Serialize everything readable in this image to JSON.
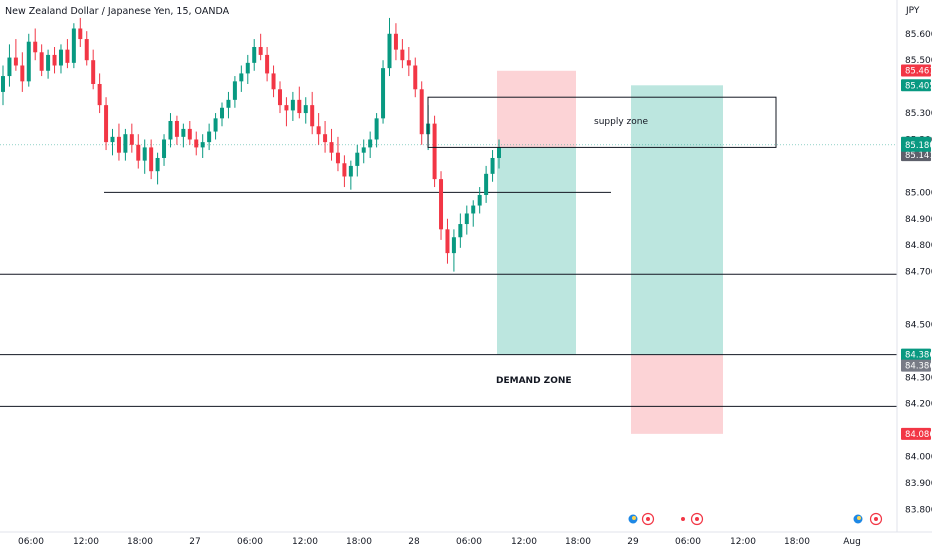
{
  "header": {
    "title": "New Zealand Dollar / Japanese Yen, 15, OANDA",
    "currency": "JPY"
  },
  "chart_data": {
    "type": "candlestick",
    "ylim": [
      83.76,
      85.69
    ],
    "y_ticks": [
      "85.600",
      "85.500",
      "85.300",
      "85.200",
      "85.000",
      "84.900",
      "84.800",
      "84.700",
      "84.500",
      "84.300",
      "84.200",
      "84.000",
      "83.900",
      "83.800"
    ],
    "x_ticks": [
      "06:00",
      "12:00",
      "18:00",
      "27",
      "06:00",
      "12:00",
      "18:00",
      "28",
      "06:00",
      "12:00",
      "18:00",
      "29",
      "06:00",
      "12:00",
      "18:00",
      "Aug"
    ],
    "price_badges": [
      {
        "label": "85.461",
        "value": 85.461,
        "color": "#f23645"
      },
      {
        "label": "85.405",
        "value": 85.405,
        "color": "#089981"
      },
      {
        "label": "85.141",
        "value": 85.141,
        "color": "#5d606b"
      },
      {
        "label": "84.386",
        "value": 84.386,
        "color": "#089981"
      },
      {
        "label": "84.386",
        "value": 84.386,
        "color": "#787b86"
      },
      {
        "label": "84.086",
        "value": 84.086,
        "color": "#f23645"
      }
    ],
    "current_price": {
      "value": 85.18,
      "label": "85.180",
      "color": "#089981"
    },
    "annotations": {
      "supply_zone": "supply zone",
      "demand_zone": "DEMAND ZONE"
    },
    "horizontal_levels": [
      85.0,
      84.69,
      84.386,
      84.19
    ],
    "supply_zone_range": [
      85.17,
      85.36
    ],
    "position_1": {
      "entry": 85.17,
      "stop": 85.46,
      "target": 84.386
    },
    "position_2": {
      "entry": 84.386,
      "stop": 84.086,
      "target": 85.405
    },
    "candles": [
      [
        85.38,
        85.48,
        85.33,
        85.44
      ],
      [
        85.44,
        85.56,
        85.4,
        85.51
      ],
      [
        85.51,
        85.58,
        85.46,
        85.48
      ],
      [
        85.48,
        85.53,
        85.38,
        85.42
      ],
      [
        85.42,
        85.6,
        85.4,
        85.57
      ],
      [
        85.57,
        85.62,
        85.5,
        85.53
      ],
      [
        85.53,
        85.56,
        85.44,
        85.46
      ],
      [
        85.46,
        85.54,
        85.43,
        85.52
      ],
      [
        85.52,
        85.55,
        85.45,
        85.48
      ],
      [
        85.48,
        85.56,
        85.45,
        85.54
      ],
      [
        85.54,
        85.58,
        85.47,
        85.49
      ],
      [
        85.49,
        85.64,
        85.47,
        85.62
      ],
      [
        85.62,
        85.66,
        85.55,
        85.58
      ],
      [
        85.58,
        85.61,
        85.48,
        85.5
      ],
      [
        85.5,
        85.54,
        85.39,
        85.41
      ],
      [
        85.41,
        85.45,
        85.3,
        85.33
      ],
      [
        85.33,
        85.36,
        85.16,
        85.19
      ],
      [
        85.19,
        85.24,
        85.14,
        85.21
      ],
      [
        85.21,
        85.26,
        85.12,
        85.15
      ],
      [
        85.15,
        85.24,
        85.12,
        85.22
      ],
      [
        85.22,
        85.26,
        85.15,
        85.18
      ],
      [
        85.18,
        85.22,
        85.09,
        85.12
      ],
      [
        85.12,
        85.2,
        85.07,
        85.17
      ],
      [
        85.17,
        85.2,
        85.05,
        85.08
      ],
      [
        85.08,
        85.15,
        85.03,
        85.13
      ],
      [
        85.13,
        85.22,
        85.1,
        85.2
      ],
      [
        85.2,
        85.3,
        85.17,
        85.27
      ],
      [
        85.27,
        85.29,
        85.18,
        85.21
      ],
      [
        85.21,
        85.26,
        85.17,
        85.24
      ],
      [
        85.24,
        85.27,
        85.18,
        85.2
      ],
      [
        85.2,
        85.23,
        85.14,
        85.17
      ],
      [
        85.17,
        85.22,
        85.13,
        85.19
      ],
      [
        85.19,
        85.26,
        85.16,
        85.23
      ],
      [
        85.23,
        85.3,
        85.2,
        85.28
      ],
      [
        85.28,
        85.34,
        85.25,
        85.32
      ],
      [
        85.32,
        85.38,
        85.28,
        85.35
      ],
      [
        85.35,
        85.44,
        85.32,
        85.42
      ],
      [
        85.42,
        85.48,
        85.38,
        85.45
      ],
      [
        85.45,
        85.52,
        85.41,
        85.49
      ],
      [
        85.49,
        85.58,
        85.46,
        85.55
      ],
      [
        85.55,
        85.6,
        85.5,
        85.52
      ],
      [
        85.52,
        85.55,
        85.42,
        85.45
      ],
      [
        85.45,
        85.48,
        85.36,
        85.39
      ],
      [
        85.39,
        85.42,
        85.3,
        85.33
      ],
      [
        85.33,
        85.36,
        85.25,
        85.31
      ],
      [
        85.31,
        85.38,
        85.27,
        85.35
      ],
      [
        85.35,
        85.4,
        85.28,
        85.3
      ],
      [
        85.3,
        85.36,
        85.26,
        85.33
      ],
      [
        85.33,
        85.38,
        85.22,
        85.25
      ],
      [
        85.25,
        85.3,
        85.18,
        85.22
      ],
      [
        85.22,
        85.27,
        85.15,
        85.19
      ],
      [
        85.19,
        85.24,
        85.12,
        85.15
      ],
      [
        85.15,
        85.21,
        85.08,
        85.11
      ],
      [
        85.11,
        85.14,
        85.02,
        85.06
      ],
      [
        85.06,
        85.12,
        85.01,
        85.1
      ],
      [
        85.1,
        85.18,
        85.06,
        85.15
      ],
      [
        85.15,
        85.2,
        85.11,
        85.17
      ],
      [
        85.17,
        85.23,
        85.13,
        85.2
      ],
      [
        85.2,
        85.3,
        85.17,
        85.28
      ],
      [
        85.28,
        85.5,
        85.26,
        85.47
      ],
      [
        85.47,
        85.66,
        85.44,
        85.6
      ],
      [
        85.6,
        85.64,
        85.5,
        85.54
      ],
      [
        85.54,
        85.58,
        85.47,
        85.5
      ],
      [
        85.5,
        85.55,
        85.44,
        85.48
      ],
      [
        85.48,
        85.51,
        85.36,
        85.39
      ],
      [
        85.39,
        85.42,
        85.18,
        85.22
      ],
      [
        85.22,
        85.33,
        85.16,
        85.26
      ],
      [
        85.26,
        85.29,
        85.02,
        85.05
      ],
      [
        85.05,
        85.08,
        84.82,
        84.86
      ],
      [
        84.86,
        84.9,
        84.73,
        84.77
      ],
      [
        84.77,
        84.86,
        84.7,
        84.83
      ],
      [
        84.83,
        84.92,
        84.79,
        84.88
      ],
      [
        84.88,
        84.95,
        84.84,
        84.92
      ],
      [
        84.92,
        84.97,
        84.87,
        84.95
      ],
      [
        84.95,
        85.02,
        84.92,
        84.99
      ],
      [
        84.99,
        85.1,
        84.96,
        85.07
      ],
      [
        85.07,
        85.16,
        85.04,
        85.13
      ],
      [
        85.13,
        85.2,
        85.09,
        85.17
      ]
    ]
  }
}
